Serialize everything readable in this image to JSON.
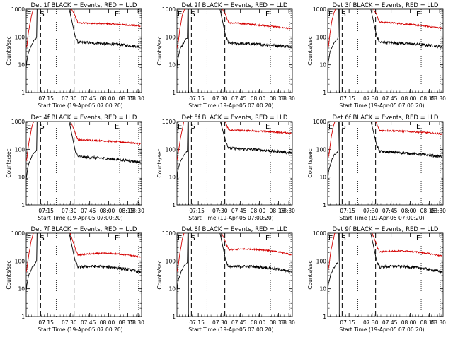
{
  "chart_data": {
    "type": "line",
    "y_scale": "log",
    "ylim": [
      1,
      1000
    ],
    "y_ticks": [
      1,
      10,
      100,
      1000
    ],
    "y_tick_labels": [
      "1",
      "10",
      "100",
      "1000"
    ],
    "x_tick_labels": [
      "07:15",
      "07:30",
      "07:45",
      "08:00",
      "08:15",
      "08:30"
    ],
    "ylabel": "Counts/sec",
    "xlabel": "Start Time (19-Apr-05 07:00:20)",
    "event_markers": {
      "start": "S",
      "end": "E"
    },
    "series_colors": {
      "events": "#000000",
      "lld": "#d40000"
    },
    "detectors": [
      {
        "title": "Det 1f BLACK = Events, RED = LLD",
        "lld_start": 320,
        "lld_end": 250,
        "events_start": 65,
        "events_end": 45,
        "end_marker": "E"
      },
      {
        "title": "Det 2f BLACK = Events, RED = LLD",
        "lld_start": 330,
        "lld_end": 200,
        "events_start": 60,
        "events_end": 45,
        "end_marker": "E"
      },
      {
        "title": "Det 3f BLACK = Events, RED = LLD",
        "lld_start": 350,
        "lld_end": 210,
        "events_start": 65,
        "events_end": 45,
        "end_marker": "E"
      },
      {
        "title": "Det 4f BLACK = Events, RED = LLD",
        "lld_start": 220,
        "lld_end": 160,
        "events_start": 55,
        "events_end": 35,
        "end_marker": "E"
      },
      {
        "title": "Det 5f BLACK = Events, RED = LLD",
        "lld_start": 490,
        "lld_end": 380,
        "events_start": 110,
        "events_end": 75,
        "end_marker": "E"
      },
      {
        "title": "Det 6f BLACK = Events, RED = LLD",
        "lld_start": 480,
        "lld_end": 360,
        "events_start": 85,
        "events_end": 55,
        "end_marker": "E"
      },
      {
        "title": "Det 7f BLACK = Events, RED = LLD",
        "lld_start": 160,
        "lld_end": 140,
        "events_start": 60,
        "events_end": 40,
        "end_marker": "E"
      },
      {
        "title": "Det 8f BLACK = Events, RED = LLD",
        "lld_start": 250,
        "lld_end": 170,
        "events_start": 60,
        "events_end": 40,
        "end_marker": "E"
      },
      {
        "title": "Det 9f BLACK = Events, RED = LLD",
        "lld_start": 210,
        "lld_end": 150,
        "events_start": 60,
        "events_end": 40,
        "end_marker": "E"
      }
    ]
  }
}
